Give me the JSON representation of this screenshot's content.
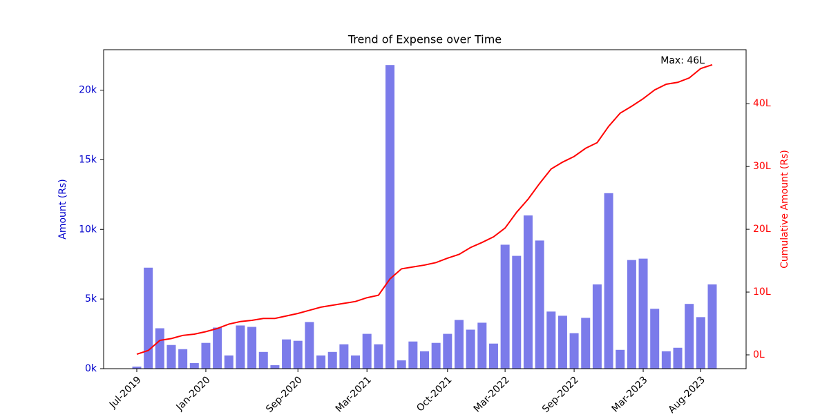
{
  "chart_data": {
    "type": "bar_line",
    "title": "Trend of Expense over Time",
    "y_label": "Amount (Rs)",
    "y2_label": "Cumulative Amount (Rs)",
    "annotation": "Max: 46L",
    "categories": [
      "Jul-2019",
      null,
      null,
      null,
      null,
      null,
      "Jan-2020",
      null,
      null,
      null,
      null,
      null,
      null,
      null,
      "Sep-2020",
      null,
      null,
      null,
      null,
      null,
      "Mar-2021",
      null,
      null,
      null,
      null,
      null,
      null,
      "Oct-2021",
      null,
      null,
      null,
      null,
      "Mar-2022",
      null,
      null,
      null,
      null,
      null,
      "Sep-2022",
      null,
      null,
      null,
      null,
      null,
      "Mar-2023",
      null,
      null,
      null,
      null,
      "Aug-2023",
      null
    ],
    "series": [
      {
        "name": "Amount",
        "type": "bar",
        "color": "#7b7bea",
        "values": [
          150,
          7250,
          2900,
          1700,
          1400,
          400,
          1850,
          2950,
          950,
          3100,
          3000,
          1200,
          250,
          2100,
          2000,
          3350,
          950,
          1200,
          1750,
          950,
          2500,
          1750,
          21800,
          600,
          1950,
          1250,
          1850,
          2500,
          3500,
          2800,
          3300,
          1800,
          8900,
          8100,
          11000,
          9200,
          4100,
          3800,
          2550,
          3650,
          6050,
          12600,
          1350,
          7800,
          7900,
          4300,
          1250,
          1500,
          4650,
          3700,
          6050
        ]
      },
      {
        "name": "Cumulative Amount",
        "type": "line",
        "axis": "y2",
        "color": "#ff0000",
        "values": [
          10000,
          70000,
          230000,
          260000,
          310000,
          330000,
          370000,
          420000,
          490000,
          530000,
          550000,
          580000,
          580000,
          620000,
          660000,
          710000,
          760000,
          790000,
          820000,
          850000,
          910000,
          950000,
          1210000,
          1370000,
          1400000,
          1430000,
          1470000,
          1540000,
          1600000,
          1710000,
          1790000,
          1880000,
          2020000,
          2270000,
          2480000,
          2730000,
          2960000,
          3070000,
          3160000,
          3290000,
          3380000,
          3640000,
          3850000,
          3960000,
          4080000,
          4220000,
          4310000,
          4340000,
          4410000,
          4560000,
          4620000
        ]
      }
    ],
    "ylim": [
      0,
      22900
    ],
    "yticks": [
      {
        "value": 0,
        "label": "0k"
      },
      {
        "value": 5000,
        "label": "5k"
      },
      {
        "value": 10000,
        "label": "10k"
      },
      {
        "value": 15000,
        "label": "15k"
      },
      {
        "value": 20000,
        "label": "20k"
      }
    ],
    "y_color": "#0000cc",
    "y2lim": [
      -220000,
      4860000
    ],
    "y2ticks": [
      {
        "value": 0,
        "label": "0L"
      },
      {
        "value": 1000000,
        "label": "10L"
      },
      {
        "value": 2000000,
        "label": "20L"
      },
      {
        "value": 3000000,
        "label": "30L"
      },
      {
        "value": 4000000,
        "label": "40L"
      }
    ],
    "y2_color": "#ff0000",
    "grid": false
  }
}
